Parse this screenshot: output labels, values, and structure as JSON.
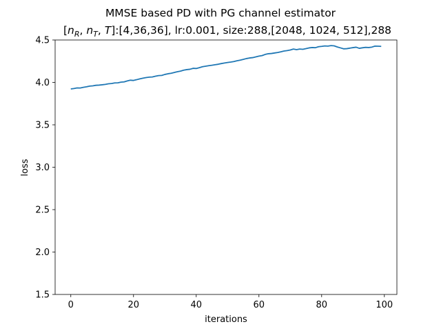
{
  "chart_data": {
    "type": "line",
    "title": "MMSE based PD with PG channel estimator",
    "subtitle": "[n_R, n_T, T]:[4,36,36], lr:0.001, size:288,[2048, 1024, 512],288",
    "subtitle_parts": {
      "bracket_open": "[",
      "n": "n",
      "sub_r": "R",
      "sep": ", ",
      "sub_t": "T",
      "t": "T",
      "rest": "]:[4,36,36], lr:0.001, size:288,[2048, 1024, 512],288"
    },
    "xlabel": "iterations",
    "ylabel": "loss",
    "xlim": [
      -5,
      104
    ],
    "ylim": [
      1.5,
      4.5
    ],
    "xticks": [
      "0",
      "20",
      "40",
      "60",
      "80",
      "100"
    ],
    "yticks": [
      "1.5",
      "2.0",
      "2.5",
      "3.0",
      "3.5",
      "4.0",
      "4.5"
    ],
    "grid": false,
    "color": "#1f77b4",
    "series": [
      {
        "x": [
          0,
          1,
          2,
          3,
          4,
          5,
          6,
          7,
          8,
          9,
          10,
          11,
          12,
          13,
          14,
          15,
          16,
          17,
          18,
          19,
          20,
          21,
          22,
          23,
          24,
          25,
          26,
          27,
          28,
          29,
          30,
          31,
          32,
          33,
          34,
          35,
          36,
          37,
          38,
          39,
          40,
          41,
          42,
          43,
          44,
          45,
          46,
          47,
          48,
          49,
          50,
          51,
          52,
          53,
          54,
          55,
          56,
          57,
          58,
          59,
          60,
          61,
          62,
          63,
          64,
          65,
          66,
          67,
          68,
          69,
          70,
          71,
          72,
          73,
          74,
          75,
          76,
          77,
          78,
          79,
          80,
          81,
          82,
          83,
          84,
          85,
          86,
          87,
          88,
          89,
          90,
          91,
          92,
          93,
          94,
          95,
          96,
          97,
          98,
          99
        ],
        "values": [
          3.923,
          3.928,
          3.935,
          3.934,
          3.942,
          3.948,
          3.956,
          3.959,
          3.966,
          3.968,
          3.972,
          3.977,
          3.984,
          3.987,
          3.994,
          3.995,
          4.003,
          4.006,
          4.017,
          4.026,
          4.023,
          4.032,
          4.042,
          4.05,
          4.057,
          4.062,
          4.064,
          4.073,
          4.08,
          4.082,
          4.094,
          4.102,
          4.108,
          4.117,
          4.126,
          4.133,
          4.144,
          4.151,
          4.155,
          4.166,
          4.164,
          4.174,
          4.185,
          4.191,
          4.197,
          4.202,
          4.208,
          4.214,
          4.222,
          4.229,
          4.235,
          4.24,
          4.246,
          4.255,
          4.262,
          4.271,
          4.281,
          4.288,
          4.292,
          4.301,
          4.31,
          4.316,
          4.33,
          4.338,
          4.341,
          4.347,
          4.353,
          4.361,
          4.37,
          4.375,
          4.382,
          4.393,
          4.386,
          4.393,
          4.39,
          4.398,
          4.407,
          4.411,
          4.409,
          4.421,
          4.425,
          4.43,
          4.428,
          4.434,
          4.431,
          4.418,
          4.407,
          4.396,
          4.398,
          4.404,
          4.41,
          4.415,
          4.402,
          4.408,
          4.413,
          4.411,
          4.416,
          4.428,
          4.427,
          4.425
        ]
      }
    ]
  }
}
